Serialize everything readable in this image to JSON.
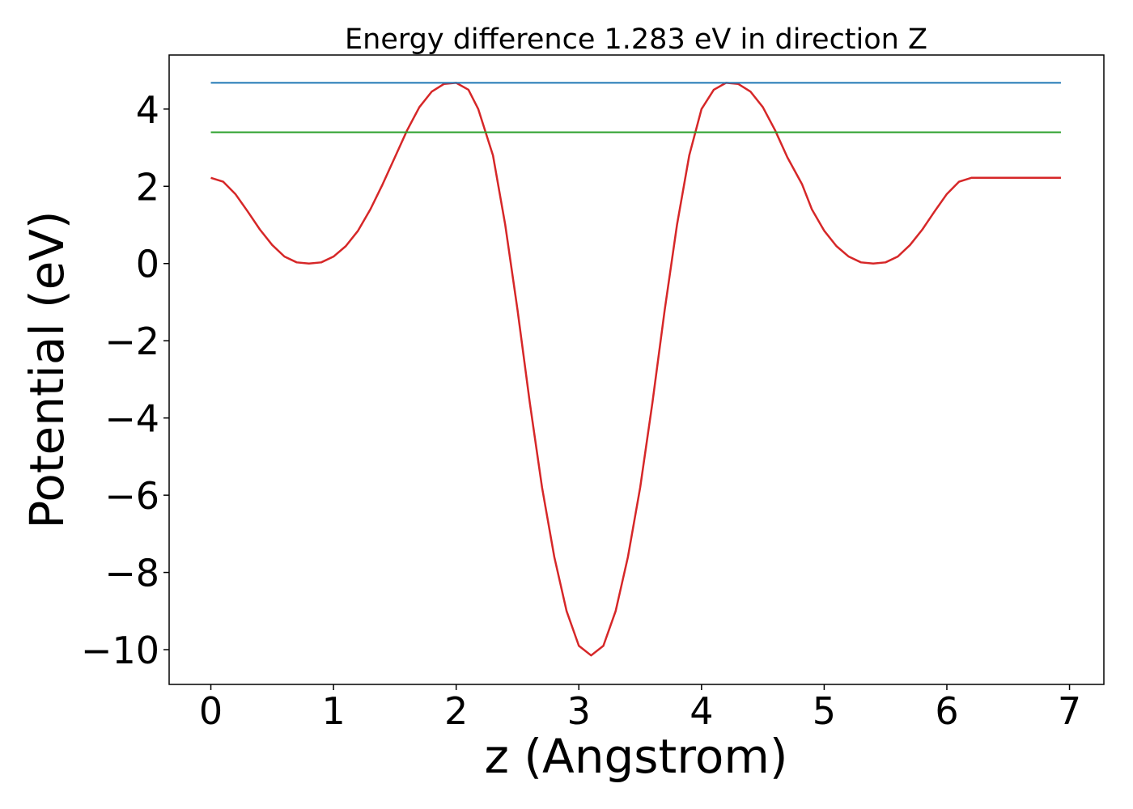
{
  "chart_data": {
    "type": "line",
    "title": "Energy difference 1.283 eV in direction Z",
    "xlabel": "z (Angstrom)",
    "ylabel": "Potential (eV)",
    "xlim": [
      -0.34,
      7.28
    ],
    "ylim": [
      -10.9,
      5.4
    ],
    "xticks": [
      0,
      1,
      2,
      3,
      4,
      5,
      6,
      7
    ],
    "yticks": [
      4,
      2,
      0,
      -2,
      -4,
      -6,
      -8,
      -10
    ],
    "xtick_labels": [
      "0",
      "1",
      "2",
      "3",
      "4",
      "5",
      "6",
      "7"
    ],
    "ytick_labels": [
      "4",
      "2",
      "0",
      "−2",
      "−4",
      "−6",
      "−8",
      "−10"
    ],
    "grid": false,
    "legend": "none",
    "series": [
      {
        "color": "#d62728",
        "x": [
          0.0,
          0.1,
          0.2,
          0.3,
          0.4,
          0.5,
          0.6,
          0.7,
          0.8,
          0.9,
          1.0,
          1.1,
          1.2,
          1.3,
          1.4,
          1.5,
          1.6,
          1.7,
          1.8,
          1.9,
          2.0,
          2.1,
          2.18,
          2.3,
          2.4,
          2.5,
          2.6,
          2.7,
          2.8,
          2.9,
          3.0,
          3.1,
          3.2,
          3.3,
          3.4,
          3.5,
          3.6,
          3.7,
          3.8,
          3.9,
          4.0,
          4.1,
          4.2,
          4.3,
          4.4,
          4.5,
          4.6,
          4.7,
          4.82,
          4.9,
          5.0,
          5.1,
          5.2,
          5.3,
          5.4,
          5.5,
          5.6,
          5.7,
          5.8,
          5.9,
          6.0,
          6.1,
          6.2,
          6.3,
          6.4,
          6.5,
          6.6,
          6.7,
          6.8,
          6.93
        ],
        "y": [
          2.22,
          2.12,
          1.8,
          1.35,
          0.88,
          0.48,
          0.18,
          0.03,
          0.0,
          0.03,
          0.18,
          0.45,
          0.85,
          1.4,
          2.05,
          2.75,
          3.45,
          4.05,
          4.45,
          4.65,
          4.68,
          4.5,
          4.0,
          2.8,
          1.0,
          -1.2,
          -3.6,
          -5.8,
          -7.6,
          -9.0,
          -9.9,
          -10.15,
          -9.9,
          -9.0,
          -7.6,
          -5.8,
          -3.6,
          -1.2,
          1.0,
          2.8,
          4.0,
          4.5,
          4.68,
          4.65,
          4.45,
          4.05,
          3.45,
          2.75,
          2.05,
          1.4,
          0.85,
          0.45,
          0.18,
          0.03,
          0.0,
          0.03,
          0.18,
          0.48,
          0.88,
          1.35,
          1.8,
          2.12,
          2.22,
          2.22,
          2.22,
          2.22,
          2.22,
          2.22,
          2.22,
          2.22
        ]
      },
      {
        "color": "#1f77b4",
        "x": [
          0.0,
          6.93
        ],
        "y": [
          4.68,
          4.68
        ]
      },
      {
        "color": "#2ca02c",
        "x": [
          0.0,
          6.93
        ],
        "y": [
          3.4,
          3.4
        ]
      }
    ]
  }
}
